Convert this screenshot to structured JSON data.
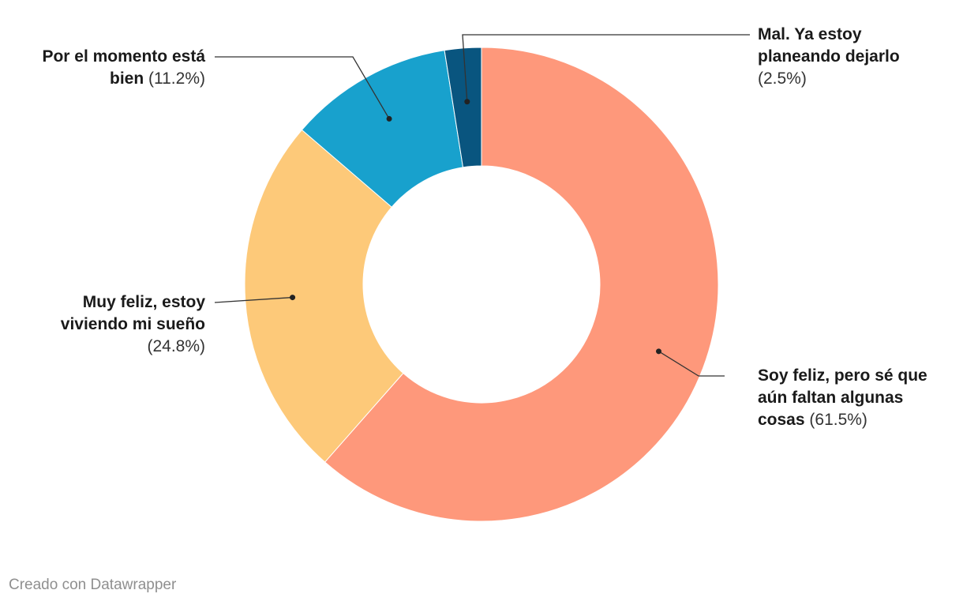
{
  "chart_data": {
    "type": "pie",
    "title": "",
    "slices": [
      {
        "label_line1": "Soy feliz, pero sé que",
        "label_line2": "aún faltan algunas",
        "label_line3": "cosas",
        "value": 61.5,
        "value_label": "(61.5%)",
        "color": "#fe987b"
      },
      {
        "label_line1": "Muy feliz, estoy",
        "label_line2": "viviendo mi sueño",
        "value": 24.8,
        "value_label": "(24.8%)",
        "color": "#fdc979"
      },
      {
        "label_line1": "Por el momento está",
        "label_line2": "bien",
        "value": 11.2,
        "value_label": "(11.2%)",
        "color": "#18a1cd"
      },
      {
        "label_line1": "Mal. Ya estoy",
        "label_line2": "planeando dejarlo",
        "value": 2.5,
        "value_label": "(2.5%)",
        "color": "#09557f"
      }
    ]
  },
  "footer": "Creado con Datawrapper"
}
